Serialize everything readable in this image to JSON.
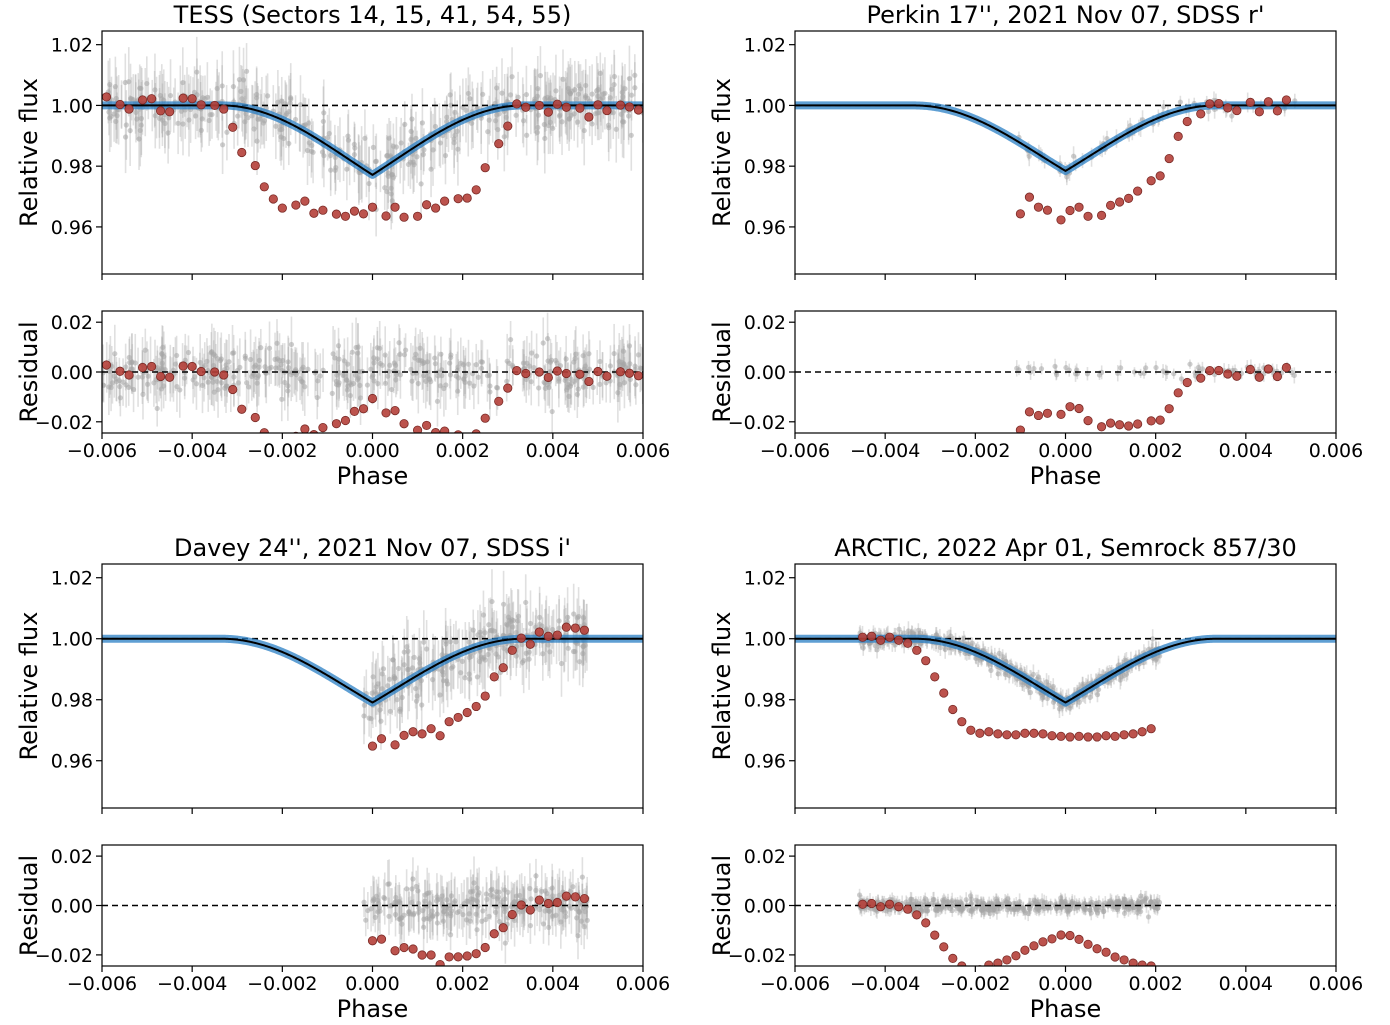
{
  "chart_data": [
    {
      "type": "line",
      "title": "TESS (Sectors 14, 15, 41, 54, 55)",
      "panels": [
        {
          "role": "flux",
          "ylabel": "Relative flux",
          "xlim": [
            -0.006,
            0.006
          ],
          "ylim": [
            0.9445,
            1.0245
          ],
          "yticks": [
            0.96,
            0.98,
            1.0,
            1.02
          ],
          "ytick_labels": [
            "0.96",
            "0.98",
            "1.00",
            "1.02"
          ],
          "reference_line": 1.0,
          "model": {
            "t1": -0.00335,
            "t2": -0.0023,
            "t3": 0.0023,
            "t4": 0.00335,
            "depth": 0.0355,
            "limb": 0.0022
          },
          "raw_data": {
            "x_range": [
              -0.006,
              0.006
            ],
            "n": 420,
            "spread": 0.011
          },
          "binned": {
            "x": [
              -0.0059,
              -0.0056,
              -0.0054,
              -0.0051,
              -0.0049,
              -0.0047,
              -0.0045,
              -0.0042,
              -0.004,
              -0.0038,
              -0.0035,
              -0.0033,
              -0.0031,
              -0.0029,
              -0.0026,
              -0.0024,
              -0.0022,
              -0.002,
              -0.0017,
              -0.0015,
              -0.0013,
              -0.0011,
              -0.0008,
              -0.0006,
              -0.0004,
              -0.0002,
              0.0,
              0.0003,
              0.0005,
              0.0007,
              0.001,
              0.0012,
              0.0014,
              0.0016,
              0.0019,
              0.0021,
              0.0023,
              0.0025,
              0.0028,
              0.003,
              0.0032,
              0.0034,
              0.0037,
              0.0039,
              0.0041,
              0.0043,
              0.0046,
              0.0048,
              0.005,
              0.0052,
              0.0055,
              0.0057,
              0.0059
            ],
            "y": [
              1.0028,
              1.0003,
              0.9988,
              1.0018,
              1.0022,
              0.9982,
              0.9979,
              1.0024,
              1.0022,
              1.0002,
              1.0,
              0.9988,
              0.9928,
              0.9845,
              0.9802,
              0.9732,
              0.9692,
              0.9662,
              0.9672,
              0.9685,
              0.9645,
              0.9655,
              0.9642,
              0.9635,
              0.9652,
              0.9643,
              0.9665,
              0.9636,
              0.9665,
              0.9632,
              0.9635,
              0.9673,
              0.9662,
              0.9685,
              0.9693,
              0.9695,
              0.9722,
              0.9795,
              0.9874,
              0.9932,
              1.0005,
              0.9994,
              1.0,
              0.9978,
              1.0004,
              0.9994,
              0.9991,
              0.9962,
              1.0002,
              0.9983,
              1.0001,
              0.9995,
              0.9985
            ]
          }
        },
        {
          "role": "residual",
          "ylabel": "Residual",
          "xlabel": "Phase",
          "xlim": [
            -0.006,
            0.006
          ],
          "ylim": [
            -0.0245,
            0.0245
          ],
          "yticks": [
            -0.02,
            0.0,
            0.02
          ],
          "ytick_labels": [
            "−0.02",
            "0.00",
            "0.02"
          ],
          "xticks": [
            -0.006,
            -0.004,
            -0.002,
            0.0,
            0.002,
            0.004,
            0.006
          ],
          "xtick_labels": [
            "−0.006",
            "−0.004",
            "−0.002",
            "0.000",
            "0.002",
            "0.004",
            "0.006"
          ],
          "reference_line": 0.0,
          "raw_data": {
            "x_range": [
              -0.006,
              0.006
            ],
            "n": 420,
            "spread": 0.011
          }
        }
      ]
    },
    {
      "type": "line",
      "title": "Perkin 17'', 2021 Nov 07, SDSS r'",
      "panels": [
        {
          "role": "flux",
          "ylabel": "Relative flux",
          "xlim": [
            -0.006,
            0.006
          ],
          "ylim": [
            0.9445,
            1.0245
          ],
          "yticks": [
            0.96,
            0.98,
            1.0,
            1.02
          ],
          "ytick_labels": [
            "0.96",
            "0.98",
            "1.00",
            "1.02"
          ],
          "reference_line": 1.0,
          "model": {
            "t1": -0.00335,
            "t2": -0.0023,
            "t3": 0.0023,
            "t4": 0.00335,
            "depth": 0.0335,
            "limb": 0.0022
          },
          "raw_data": {
            "x_range": [
              -0.0011,
              0.0051
            ],
            "n": 60,
            "spread": 0.003
          },
          "binned": {
            "x": [
              -0.001,
              -0.0008,
              -0.0006,
              -0.0004,
              -0.0001,
              0.0001,
              0.0003,
              0.0005,
              0.0008,
              0.001,
              0.0012,
              0.0014,
              0.0016,
              0.0019,
              0.0021,
              0.0023,
              0.0025,
              0.0027,
              0.003,
              0.0032,
              0.0034,
              0.0036,
              0.0038,
              0.0041,
              0.0043,
              0.0045,
              0.0047,
              0.0049
            ],
            "y": [
              0.9643,
              0.9698,
              0.9665,
              0.9655,
              0.9623,
              0.9654,
              0.9665,
              0.9635,
              0.9638,
              0.9671,
              0.9682,
              0.9694,
              0.9718,
              0.9752,
              0.9768,
              0.9825,
              0.9898,
              0.9947,
              0.9972,
              1.0005,
              1.0006,
              0.9992,
              0.9983,
              1.001,
              0.9979,
              1.0012,
              0.9982,
              1.0018
            ]
          }
        },
        {
          "role": "residual",
          "ylabel": "Residual",
          "xlabel": "Phase",
          "xlim": [
            -0.006,
            0.006
          ],
          "ylim": [
            -0.0245,
            0.0245
          ],
          "yticks": [
            -0.02,
            0.0,
            0.02
          ],
          "ytick_labels": [
            "−0.02",
            "0.00",
            "0.02"
          ],
          "xticks": [
            -0.006,
            -0.004,
            -0.002,
            0.0,
            0.002,
            0.004,
            0.006
          ],
          "xtick_labels": [
            "−0.006",
            "−0.004",
            "−0.002",
            "0.000",
            "0.002",
            "0.004",
            "0.006"
          ],
          "reference_line": 0.0,
          "raw_data": {
            "x_range": [
              -0.0011,
              0.0051
            ],
            "n": 60,
            "spread": 0.003
          }
        }
      ]
    },
    {
      "type": "line",
      "title": "Davey 24'', 2021 Nov 07, SDSS i'",
      "panels": [
        {
          "role": "flux",
          "ylabel": "Relative flux",
          "xlim": [
            -0.006,
            0.006
          ],
          "ylim": [
            0.9445,
            1.0245
          ],
          "yticks": [
            0.96,
            0.98,
            1.0,
            1.02
          ],
          "ytick_labels": [
            "0.96",
            "0.98",
            "1.00",
            "1.02"
          ],
          "reference_line": 1.0,
          "model": {
            "t1": -0.00335,
            "t2": -0.0023,
            "t3": 0.0023,
            "t4": 0.00335,
            "depth": 0.0325,
            "limb": 0.0018
          },
          "raw_data": {
            "x_range": [
              -0.0002,
              0.0048
            ],
            "n": 230,
            "spread": 0.01
          },
          "binned": {
            "x": [
              0.0,
              0.0002,
              0.0005,
              0.0007,
              0.0009,
              0.0011,
              0.0013,
              0.0015,
              0.0017,
              0.0019,
              0.0021,
              0.0023,
              0.0025,
              0.0027,
              0.0029,
              0.0031,
              0.0033,
              0.0035,
              0.0037,
              0.0039,
              0.0041,
              0.0043,
              0.0045,
              0.0047
            ],
            "y": [
              0.9648,
              0.9672,
              0.9652,
              0.9683,
              0.9695,
              0.9688,
              0.9705,
              0.9682,
              0.9728,
              0.9742,
              0.9758,
              0.9778,
              0.9812,
              0.9875,
              0.9905,
              0.9962,
              1.0002,
              0.9982,
              1.0022,
              1.0008,
              1.0012,
              1.0038,
              1.0035,
              1.0028
            ]
          }
        },
        {
          "role": "residual",
          "ylabel": "Residual",
          "xlabel": "Phase",
          "xlim": [
            -0.006,
            0.006
          ],
          "ylim": [
            -0.0245,
            0.0245
          ],
          "yticks": [
            -0.02,
            0.0,
            0.02
          ],
          "ytick_labels": [
            "−0.02",
            "0.00",
            "0.02"
          ],
          "xticks": [
            -0.006,
            -0.004,
            -0.002,
            0.0,
            0.002,
            0.004,
            0.006
          ],
          "xtick_labels": [
            "−0.006",
            "−0.004",
            "−0.002",
            "0.000",
            "0.002",
            "0.004",
            "0.006"
          ],
          "reference_line": 0.0,
          "raw_data": {
            "x_range": [
              -0.0002,
              0.0048
            ],
            "n": 230,
            "spread": 0.01
          }
        }
      ]
    },
    {
      "type": "line",
      "title": "ARCTIC, 2022 Apr 01, Semrock 857/30",
      "panels": [
        {
          "role": "flux",
          "ylabel": "Relative flux",
          "xlim": [
            -0.006,
            0.006
          ],
          "ylim": [
            0.9445,
            1.0245
          ],
          "yticks": [
            0.96,
            0.98,
            1.0,
            1.02
          ],
          "ytick_labels": [
            "0.96",
            "0.98",
            "1.00",
            "1.02"
          ],
          "reference_line": 1.0,
          "model": {
            "t1": -0.00335,
            "t2": -0.0023,
            "t3": 0.0023,
            "t4": 0.00335,
            "depth": 0.0325,
            "limb": 0.0015
          },
          "raw_data": {
            "x_range": [
              -0.0046,
              0.0021
            ],
            "n": 420,
            "spread": 0.003
          },
          "binned": {
            "x": [
              -0.0045,
              -0.0043,
              -0.0041,
              -0.0039,
              -0.0037,
              -0.0035,
              -0.0033,
              -0.0031,
              -0.0029,
              -0.0027,
              -0.0025,
              -0.0023,
              -0.0021,
              -0.0019,
              -0.0017,
              -0.0015,
              -0.0013,
              -0.0011,
              -0.0009,
              -0.0007,
              -0.0005,
              -0.0003,
              -0.0001,
              0.0001,
              0.0003,
              0.0005,
              0.0007,
              0.0009,
              0.0011,
              0.0013,
              0.0015,
              0.0017,
              0.0019
            ],
            "y": [
              1.0005,
              1.0008,
              0.9995,
              1.0005,
              0.9995,
              0.9985,
              0.9962,
              0.9928,
              0.9875,
              0.9822,
              0.9768,
              0.9728,
              0.97,
              0.969,
              0.9695,
              0.9688,
              0.9685,
              0.9685,
              0.969,
              0.969,
              0.9688,
              0.9682,
              0.968,
              0.9678,
              0.968,
              0.9678,
              0.9678,
              0.9682,
              0.968,
              0.9685,
              0.9688,
              0.9695,
              0.9705
            ]
          }
        },
        {
          "role": "residual",
          "ylabel": "Residual",
          "xlabel": "Phase",
          "xlim": [
            -0.006,
            0.006
          ],
          "ylim": [
            -0.0245,
            0.0245
          ],
          "yticks": [
            -0.02,
            0.0,
            0.02
          ],
          "ytick_labels": [
            "−0.02",
            "0.00",
            "0.02"
          ],
          "xticks": [
            -0.006,
            -0.004,
            -0.002,
            0.0,
            0.002,
            0.004,
            0.006
          ],
          "xtick_labels": [
            "−0.006",
            "−0.004",
            "−0.002",
            "0.000",
            "0.002",
            "0.004",
            "0.006"
          ],
          "reference_line": 0.0,
          "raw_data": {
            "x_range": [
              -0.0046,
              0.0021
            ],
            "n": 420,
            "spread": 0.003
          }
        }
      ]
    }
  ],
  "colors": {
    "raw_points": "#a6a6a6",
    "binned_points": "#b5403a",
    "model_line": "#000000",
    "model_band": "#2a7fc4",
    "reference_line": "#000000"
  }
}
